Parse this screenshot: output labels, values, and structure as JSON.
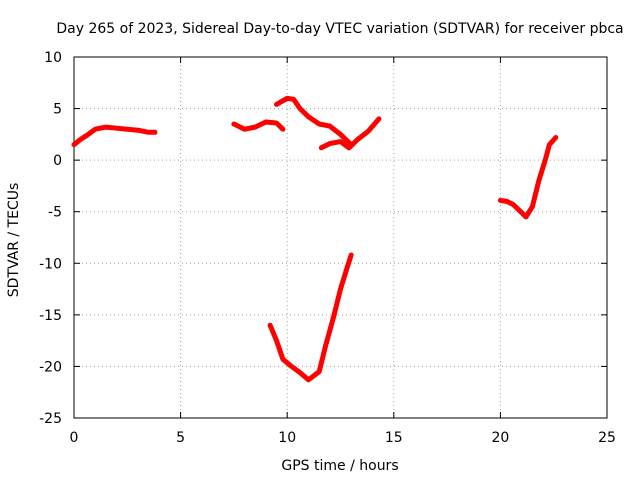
{
  "chart_data": {
    "type": "scatter",
    "title": "Day 265 of 2023, Sidereal Day-to-day VTEC variation (SDTVAR) for receiver pbca",
    "xlabel": "GPS time / hours",
    "ylabel": "SDTVAR / TECUs",
    "xlim": [
      0,
      25
    ],
    "ylim": [
      -25,
      10
    ],
    "xticks": [
      0,
      5,
      10,
      15,
      20,
      25
    ],
    "yticks": [
      -25,
      -20,
      -15,
      -10,
      -5,
      0,
      5,
      10
    ],
    "grid": true,
    "color": "#ff0000",
    "series": [
      {
        "name": "segment-1",
        "x": [
          0,
          0.3,
          0.6,
          1.0,
          1.5,
          2.0,
          2.5,
          3.0,
          3.5,
          3.8
        ],
        "y": [
          1.5,
          2.0,
          2.4,
          3.0,
          3.2,
          3.1,
          3.0,
          2.9,
          2.7,
          2.7
        ]
      },
      {
        "name": "segment-2",
        "x": [
          7.5,
          8.0,
          8.5,
          9.0,
          9.5,
          9.8
        ],
        "y": [
          3.5,
          3.0,
          3.2,
          3.7,
          3.6,
          3.0
        ]
      },
      {
        "name": "segment-3",
        "x": [
          9.5,
          10.0,
          10.3,
          10.6,
          11.0,
          11.5,
          12.0,
          12.5,
          13.0
        ],
        "y": [
          5.4,
          6.0,
          5.9,
          5.0,
          4.2,
          3.5,
          3.3,
          2.5,
          1.5
        ]
      },
      {
        "name": "segment-4",
        "x": [
          11.6,
          12.0,
          12.5,
          12.9,
          13.3,
          13.8,
          14.3
        ],
        "y": [
          1.2,
          1.6,
          1.8,
          1.2,
          2.0,
          2.8,
          4.0
        ]
      },
      {
        "name": "segment-5",
        "x": [
          9.2,
          9.5,
          9.8,
          10.2,
          10.6,
          11.0,
          11.5,
          11.8,
          12.2,
          12.5,
          12.8,
          13.0
        ],
        "y": [
          -16,
          -17.5,
          -19.3,
          -20.0,
          -20.6,
          -21.3,
          -20.5,
          -18.0,
          -15.0,
          -12.5,
          -10.5,
          -9.2
        ]
      },
      {
        "name": "segment-6",
        "x": [
          20.0,
          20.3,
          20.6,
          20.9,
          21.2,
          21.5,
          21.8,
          22.1,
          22.3,
          22.6
        ],
        "y": [
          -3.9,
          -4.0,
          -4.3,
          -4.9,
          -5.5,
          -4.5,
          -2.0,
          0.0,
          1.5,
          2.2
        ]
      }
    ]
  }
}
